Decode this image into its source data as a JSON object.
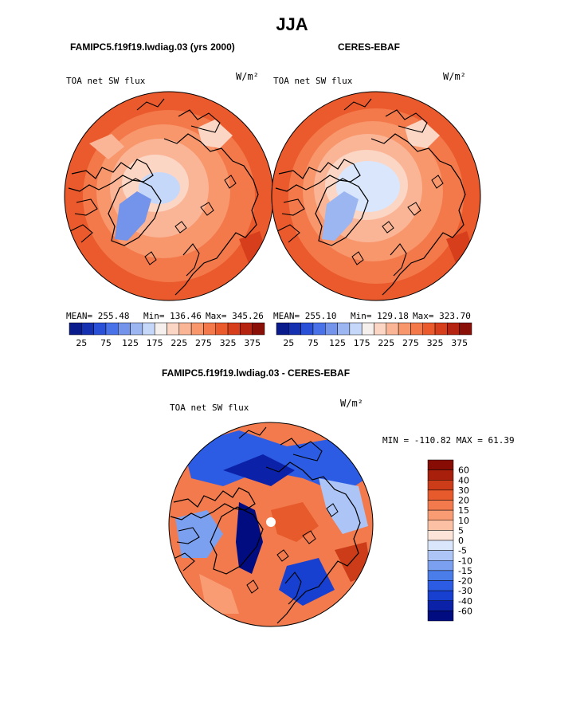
{
  "chart_data": [
    {
      "type": "heatmap",
      "projection": "north-polar-stereographic",
      "title": "FAMIPC5.f19f19.lwdiag.03 (yrs 2000)",
      "variable": "TOA net SW flux",
      "units": "W/m²",
      "stats": {
        "mean": "MEAN= 255.48",
        "min": "Min= 136.46",
        "max": "Max= 345.26"
      },
      "colorbar": {
        "orientation": "horizontal",
        "tick_labels": [
          "25",
          "75",
          "125",
          "175",
          "225",
          "275",
          "325",
          "375"
        ]
      }
    },
    {
      "type": "heatmap",
      "projection": "north-polar-stereographic",
      "title": "CERES-EBAF",
      "variable": "TOA net SW flux",
      "units": "W/m²",
      "stats": {
        "mean": "MEAN= 255.10",
        "min": "Min= 129.18",
        "max": "Max= 323.70"
      },
      "colorbar": {
        "orientation": "horizontal",
        "tick_labels": [
          "25",
          "75",
          "125",
          "175",
          "225",
          "275",
          "325",
          "375"
        ]
      }
    },
    {
      "type": "heatmap",
      "projection": "north-polar-stereographic",
      "title": "FAMIPC5.f19f19.lwdiag.03 - CERES-EBAF",
      "variable": "TOA net SW flux",
      "units": "W/m²",
      "stats": {
        "minmax": "MIN = -110.82 MAX =  61.39"
      },
      "colorbar": {
        "orientation": "vertical",
        "tick_labels": [
          "60",
          "40",
          "30",
          "20",
          "15",
          "10",
          "5",
          "0",
          "-5",
          "-10",
          "-15",
          "-20",
          "-30",
          "-40",
          "-60"
        ]
      }
    }
  ],
  "page": {
    "season": "JJA"
  },
  "colors": {
    "abs_scale": [
      "#0a1c8c",
      "#1530b0",
      "#2a50d8",
      "#4a72e8",
      "#7394ea",
      "#9cb6f2",
      "#c6d8fa",
      "#f5f0ee",
      "#fcd6c4",
      "#fab597",
      "#f8966c",
      "#f3784a",
      "#ea5a2c",
      "#d63e1c",
      "#b42410",
      "#8a0f06"
    ],
    "diff_scale": [
      "#000c80",
      "#0b22a8",
      "#1740d0",
      "#2c5ce4",
      "#4a7cea",
      "#7ca0f0",
      "#acc4f6",
      "#dae6fb",
      "#fde4d8",
      "#fcc1a4",
      "#f99c74",
      "#f27a4c",
      "#e65a2c",
      "#cc3c18",
      "#a8200c",
      "#860c04"
    ],
    "land_outline": "#000000"
  }
}
